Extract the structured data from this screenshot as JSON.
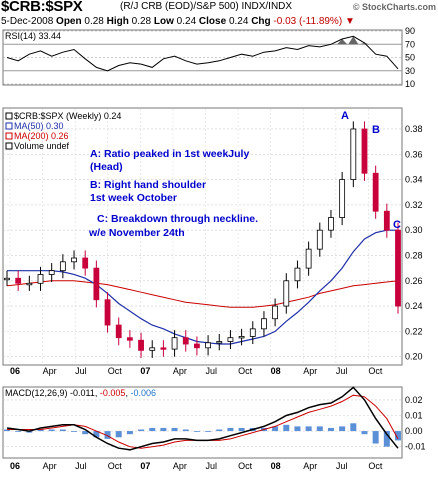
{
  "header": {
    "symbol": "$CRB:$SPX",
    "description": "(R/J CRB (EOD)/S&P 500)  INDX/INDX",
    "date": "5-Dec-2008",
    "open_label": "Open",
    "open": "0.28",
    "high_label": "High",
    "high": "0.28",
    "low_label": "Low",
    "low": "0.24",
    "close_label": "Close",
    "close": "0.24",
    "chg_label": "Chg",
    "chg": "-0.03 (-11.89%)",
    "chg_icon": "down-triangle-icon",
    "brand": "© StockCharts.com"
  },
  "rsi_panel": {
    "label": "RSI(14) 33.44",
    "ticks": [
      "90",
      "70",
      "50",
      "30",
      "10"
    ]
  },
  "price_panel": {
    "legend": [
      {
        "text": "$CRB:$SPX (Weekly) 0.24",
        "color": "#000000"
      },
      {
        "text": "MA(50) 0.30",
        "color": "#1f2fa8"
      },
      {
        "text": "MA(200) 0.26",
        "color": "#cc0000"
      },
      {
        "text": "Volume undef",
        "color": "#000000"
      }
    ],
    "annotations": [
      "A: Ratio peaked in 1st weekJuly",
      "(Head)",
      "B: Right hand shoulder",
      "1st week October",
      "C: Breakdown through neckline.",
      "w/e November 24th"
    ],
    "markers": [
      "A",
      "B",
      "C"
    ],
    "annotation_color": "#0000cc",
    "y_ticks": [
      "0.38",
      "0.36",
      "0.34",
      "0.32",
      "0.30",
      "0.28",
      "0.26",
      "0.24",
      "0.22",
      "0.20"
    ],
    "x_ticks": [
      "06",
      "Apr",
      "Jul",
      "Oct",
      "07",
      "Apr",
      "Jul",
      "Oct",
      "08",
      "Apr",
      "Jul",
      "Oct"
    ]
  },
  "macd_panel": {
    "label": "MACD(12,26,9)",
    "v1": "-0.011",
    "v2": "-0.005",
    "v3": "-0.006",
    "ticks": [
      "0.02",
      "0.01",
      "0.00",
      "-0.01"
    ],
    "x_ticks": [
      "06",
      "Apr",
      "Jul",
      "Oct",
      "07",
      "Apr",
      "Jul",
      "Oct",
      "08",
      "Apr",
      "Jul",
      "Oct"
    ]
  },
  "chart_data": {
    "type": "line",
    "title": "$CRB:$SPX (Weekly)",
    "x": [
      "2006-01",
      "2006-02",
      "2006-03",
      "2006-04",
      "2006-05",
      "2006-06",
      "2006-07",
      "2006-08",
      "2006-09",
      "2006-10",
      "2006-11",
      "2006-12",
      "2007-01",
      "2007-02",
      "2007-03",
      "2007-04",
      "2007-05",
      "2007-06",
      "2007-07",
      "2007-08",
      "2007-09",
      "2007-10",
      "2007-11",
      "2007-12",
      "2008-01",
      "2008-02",
      "2008-03",
      "2008-04",
      "2008-05",
      "2008-06",
      "2008-07",
      "2008-08",
      "2008-09",
      "2008-10",
      "2008-11",
      "2008-12"
    ],
    "series": [
      {
        "name": "$CRB:$SPX",
        "values": [
          0.262,
          0.258,
          0.258,
          0.265,
          0.268,
          0.275,
          0.278,
          0.27,
          0.245,
          0.225,
          0.215,
          0.213,
          0.205,
          0.207,
          0.206,
          0.215,
          0.21,
          0.207,
          0.211,
          0.212,
          0.215,
          0.216,
          0.222,
          0.23,
          0.24,
          0.26,
          0.27,
          0.285,
          0.3,
          0.31,
          0.34,
          0.38,
          0.345,
          0.315,
          0.3,
          0.24
        ]
      },
      {
        "name": "MA(50)",
        "values": [
          0.268,
          0.268,
          0.268,
          0.268,
          0.268,
          0.267,
          0.265,
          0.262,
          0.257,
          0.25,
          0.242,
          0.236,
          0.23,
          0.225,
          0.222,
          0.218,
          0.215,
          0.212,
          0.211,
          0.21,
          0.21,
          0.212,
          0.214,
          0.216,
          0.22,
          0.228,
          0.235,
          0.243,
          0.252,
          0.26,
          0.27,
          0.283,
          0.293,
          0.298,
          0.3,
          0.3
        ]
      },
      {
        "name": "MA(200)",
        "values": [
          0.256,
          0.257,
          0.258,
          0.259,
          0.26,
          0.26,
          0.26,
          0.259,
          0.258,
          0.257,
          0.255,
          0.253,
          0.251,
          0.249,
          0.247,
          0.245,
          0.243,
          0.242,
          0.241,
          0.24,
          0.239,
          0.239,
          0.239,
          0.24,
          0.241,
          0.243,
          0.245,
          0.247,
          0.25,
          0.252,
          0.254,
          0.256,
          0.257,
          0.258,
          0.259,
          0.26
        ]
      }
    ],
    "ylim": [
      0.195,
      0.395
    ],
    "rsi": [
      50,
      45,
      55,
      60,
      52,
      58,
      62,
      48,
      35,
      30,
      38,
      42,
      40,
      35,
      48,
      52,
      45,
      40,
      42,
      45,
      50,
      55,
      52,
      58,
      60,
      65,
      62,
      68,
      66,
      70,
      78,
      82,
      72,
      55,
      52,
      33
    ],
    "rsi_ylim": [
      10,
      90
    ],
    "macd": [
      0.002,
      0.001,
      0.0,
      0.002,
      0.003,
      0.004,
      0.004,
      0.001,
      -0.004,
      -0.008,
      -0.011,
      -0.012,
      -0.01,
      -0.008,
      -0.007,
      -0.005,
      -0.005,
      -0.006,
      -0.006,
      -0.005,
      -0.003,
      -0.001,
      0.001,
      0.003,
      0.006,
      0.01,
      0.012,
      0.015,
      0.017,
      0.018,
      0.022,
      0.028,
      0.02,
      0.008,
      -0.002,
      -0.011
    ],
    "macd_signal": [
      0.001,
      0.001,
      0.001,
      0.001,
      0.002,
      0.003,
      0.004,
      0.003,
      0.0,
      -0.003,
      -0.007,
      -0.01,
      -0.011,
      -0.01,
      -0.009,
      -0.007,
      -0.006,
      -0.006,
      -0.006,
      -0.006,
      -0.005,
      -0.003,
      -0.001,
      0.001,
      0.003,
      0.006,
      0.009,
      0.012,
      0.014,
      0.016,
      0.019,
      0.023,
      0.022,
      0.016,
      0.008,
      -0.005
    ],
    "macd_ylim": [
      -0.016,
      0.027
    ]
  }
}
